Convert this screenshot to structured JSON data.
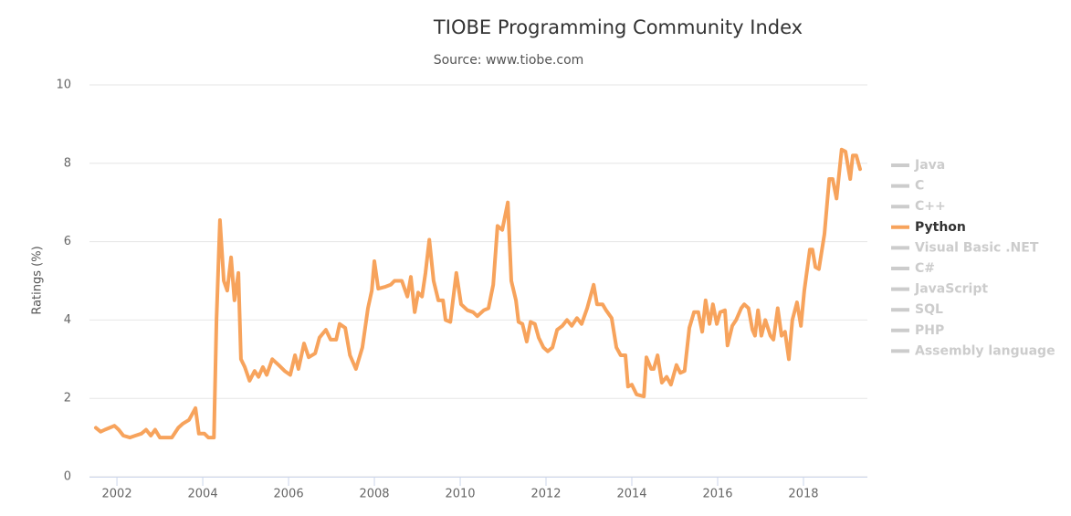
{
  "chart_data": {
    "type": "line",
    "title": "TIOBE Programming Community Index",
    "subtitle": "Source: www.tiobe.com",
    "y_label": "Ratings (%)",
    "xlim": [
      2001.36,
      2019.49
    ],
    "xticks": [
      2002,
      2004,
      2006,
      2008,
      2010,
      2012,
      2014,
      2016,
      2018
    ],
    "ylim": [
      0,
      10
    ],
    "yticks": [
      0,
      2,
      4,
      6,
      8,
      10
    ],
    "grid": true,
    "legend": "right",
    "series": [
      {
        "name": "Java",
        "color": "#cccccc",
        "visible": false
      },
      {
        "name": "C",
        "color": "#cccccc",
        "visible": false
      },
      {
        "name": "C++",
        "color": "#cccccc",
        "visible": false
      },
      {
        "name": "Python",
        "color": "#f7a35c",
        "visible": true,
        "x": [
          2001.51,
          2001.62,
          2001.72,
          2001.83,
          2001.94,
          2002.04,
          2002.15,
          2002.3,
          2002.43,
          2002.57,
          2002.68,
          2002.79,
          2002.89,
          2003.0,
          2003.15,
          2003.28,
          2003.43,
          2003.53,
          2003.68,
          2003.83,
          2003.91,
          2004.04,
          2004.13,
          2004.26,
          2004.32,
          2004.4,
          2004.49,
          2004.57,
          2004.66,
          2004.74,
          2004.83,
          2004.89,
          2004.98,
          2005.09,
          2005.21,
          2005.3,
          2005.4,
          2005.49,
          2005.62,
          2005.77,
          2005.91,
          2006.04,
          2006.15,
          2006.23,
          2006.36,
          2006.47,
          2006.62,
          2006.72,
          2006.87,
          2006.98,
          2007.11,
          2007.19,
          2007.32,
          2007.43,
          2007.57,
          2007.72,
          2007.85,
          2007.94,
          2008.0,
          2008.09,
          2008.26,
          2008.38,
          2008.47,
          2008.64,
          2008.77,
          2008.85,
          2008.94,
          2009.02,
          2009.11,
          2009.19,
          2009.28,
          2009.38,
          2009.49,
          2009.6,
          2009.66,
          2009.77,
          2009.91,
          2010.02,
          2010.17,
          2010.3,
          2010.4,
          2010.55,
          2010.66,
          2010.77,
          2010.87,
          2010.98,
          2011.11,
          2011.19,
          2011.3,
          2011.36,
          2011.45,
          2011.55,
          2011.64,
          2011.74,
          2011.83,
          2011.94,
          2012.04,
          2012.15,
          2012.26,
          2012.38,
          2012.49,
          2012.6,
          2012.72,
          2012.83,
          2012.96,
          2013.11,
          2013.19,
          2013.32,
          2013.4,
          2013.53,
          2013.64,
          2013.74,
          2013.85,
          2013.91,
          2014.0,
          2014.11,
          2014.28,
          2014.34,
          2014.45,
          2014.51,
          2014.6,
          2014.7,
          2014.81,
          2014.91,
          2015.04,
          2015.13,
          2015.23,
          2015.34,
          2015.45,
          2015.55,
          2015.64,
          2015.72,
          2015.81,
          2015.89,
          2015.98,
          2016.06,
          2016.17,
          2016.23,
          2016.34,
          2016.43,
          2016.55,
          2016.62,
          2016.72,
          2016.81,
          2016.87,
          2016.94,
          2017.02,
          2017.11,
          2017.23,
          2017.3,
          2017.4,
          2017.49,
          2017.57,
          2017.66,
          2017.74,
          2017.85,
          2017.94,
          2018.02,
          2018.15,
          2018.21,
          2018.28,
          2018.36,
          2018.49,
          2018.6,
          2018.68,
          2018.77,
          2018.89,
          2018.98,
          2019.09,
          2019.15,
          2019.23,
          2019.32
        ],
        "values": [
          1.25,
          1.15,
          1.2,
          1.25,
          1.3,
          1.2,
          1.05,
          1.0,
          1.05,
          1.1,
          1.2,
          1.05,
          1.2,
          1.0,
          1.0,
          1.0,
          1.25,
          1.35,
          1.45,
          1.75,
          1.1,
          1.1,
          1.0,
          1.0,
          4.0,
          6.55,
          5.0,
          4.75,
          5.6,
          4.5,
          5.2,
          3.0,
          2.8,
          2.45,
          2.7,
          2.55,
          2.8,
          2.6,
          3.0,
          2.85,
          2.7,
          2.6,
          3.1,
          2.75,
          3.4,
          3.05,
          3.15,
          3.55,
          3.75,
          3.5,
          3.5,
          3.9,
          3.8,
          3.1,
          2.75,
          3.3,
          4.3,
          4.75,
          5.5,
          4.8,
          4.85,
          4.9,
          5.0,
          5.0,
          4.6,
          5.1,
          4.2,
          4.7,
          4.6,
          5.2,
          6.05,
          5.0,
          4.5,
          4.5,
          4.0,
          3.95,
          5.2,
          4.4,
          4.25,
          4.2,
          4.1,
          4.25,
          4.3,
          4.9,
          6.4,
          6.3,
          7.0,
          5.0,
          4.5,
          3.95,
          3.9,
          3.45,
          3.95,
          3.9,
          3.55,
          3.3,
          3.2,
          3.3,
          3.75,
          3.85,
          4.0,
          3.85,
          4.05,
          3.9,
          4.3,
          4.9,
          4.4,
          4.4,
          4.25,
          4.05,
          3.3,
          3.1,
          3.1,
          2.3,
          2.35,
          2.1,
          2.05,
          3.05,
          2.75,
          2.75,
          3.1,
          2.4,
          2.55,
          2.35,
          2.85,
          2.65,
          2.7,
          3.8,
          4.2,
          4.2,
          3.7,
          4.5,
          3.9,
          4.4,
          3.9,
          4.2,
          4.25,
          3.35,
          3.85,
          4.0,
          4.3,
          4.4,
          4.3,
          3.75,
          3.6,
          4.25,
          3.6,
          4.0,
          3.6,
          3.5,
          4.3,
          3.6,
          3.7,
          3.0,
          4.0,
          4.45,
          3.85,
          4.75,
          5.8,
          5.8,
          5.35,
          5.3,
          6.2,
          7.6,
          7.6,
          7.1,
          8.35,
          8.3,
          7.6,
          8.2,
          8.2,
          7.85
        ]
      },
      {
        "name": "Visual Basic .NET",
        "color": "#cccccc",
        "visible": false
      },
      {
        "name": "C#",
        "color": "#cccccc",
        "visible": false
      },
      {
        "name": "JavaScript",
        "color": "#cccccc",
        "visible": false
      },
      {
        "name": "SQL",
        "color": "#cccccc",
        "visible": false
      },
      {
        "name": "PHP",
        "color": "#cccccc",
        "visible": false
      },
      {
        "name": "Assembly language",
        "color": "#cccccc",
        "visible": false
      }
    ]
  }
}
